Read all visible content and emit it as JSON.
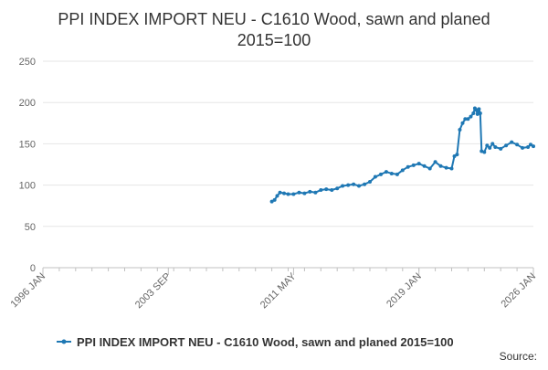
{
  "chart_data": {
    "type": "line",
    "title": "PPI INDEX IMPORT NEU - C1610 Wood, sawn and planed",
    "subtitle": "2015=100",
    "xlabel": "",
    "ylabel": "",
    "x_ticks": [
      "1996 JAN",
      "2003 SEP",
      "2011 MAY",
      "2019 JAN",
      "2026 JAN"
    ],
    "x_tick_years": [
      1996.0,
      2003.67,
      2011.33,
      2019.0,
      2026.0
    ],
    "xlim": [
      1996.0,
      2026.0
    ],
    "y_ticks": [
      0,
      50,
      100,
      150,
      200,
      250
    ],
    "ylim": [
      0,
      250
    ],
    "grid": "horizontal",
    "legend": "bottom",
    "source_label": "Source:",
    "series": [
      {
        "name": "PPI INDEX IMPORT NEU - C1610 Wood, sawn and planed 2015=100",
        "color": "#1f78b4",
        "x": [
          2010.0,
          2010.17,
          2010.33,
          2010.5,
          2010.75,
          2011.0,
          2011.33,
          2011.67,
          2012.0,
          2012.33,
          2012.67,
          2013.0,
          2013.33,
          2013.67,
          2014.0,
          2014.33,
          2014.67,
          2015.0,
          2015.33,
          2015.67,
          2016.0,
          2016.33,
          2016.67,
          2017.0,
          2017.33,
          2017.67,
          2018.0,
          2018.33,
          2018.67,
          2019.0,
          2019.33,
          2019.67,
          2020.0,
          2020.33,
          2020.67,
          2021.0,
          2021.17,
          2021.33,
          2021.5,
          2021.67,
          2021.83,
          2022.0,
          2022.17,
          2022.33,
          2022.42,
          2022.5,
          2022.58,
          2022.67,
          2022.75,
          2022.83,
          2023.0,
          2023.17,
          2023.33,
          2023.5,
          2023.67,
          2024.0,
          2024.33,
          2024.67,
          2025.0,
          2025.33,
          2025.67,
          2025.83,
          2026.0
        ],
        "values": [
          80,
          82,
          87,
          91,
          90,
          89,
          89,
          91,
          90,
          92,
          91,
          94,
          95,
          94,
          96,
          99,
          100,
          101,
          99,
          101,
          104,
          110,
          113,
          116,
          114,
          113,
          118,
          122,
          124,
          126,
          123,
          120,
          128,
          123,
          121,
          120,
          135,
          137,
          167,
          175,
          180,
          180,
          183,
          187,
          193,
          191,
          186,
          192,
          187,
          141,
          140,
          148,
          145,
          150,
          146,
          144,
          148,
          152,
          149,
          145,
          146,
          149,
          147
        ]
      }
    ]
  }
}
